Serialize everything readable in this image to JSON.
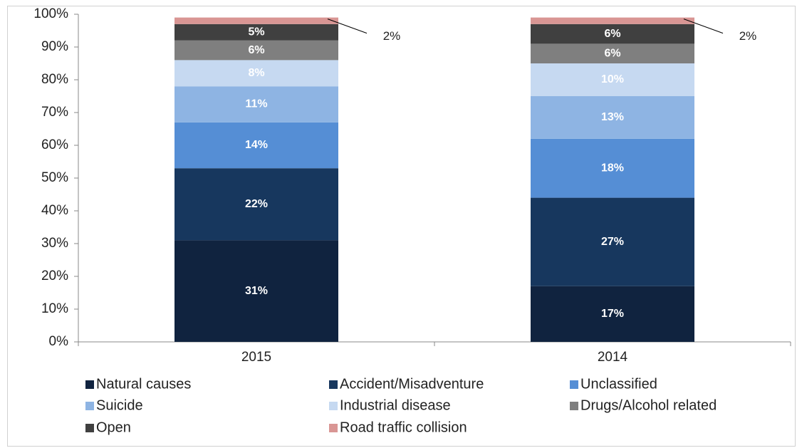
{
  "chart_data": {
    "type": "stacked_bar",
    "categories": [
      "2015",
      "2014"
    ],
    "series": [
      {
        "name": "Natural causes",
        "color": "#10233f",
        "values": [
          31,
          17
        ],
        "value_labels": [
          "31%",
          "17%"
        ]
      },
      {
        "name": "Accident/Misadventure",
        "color": "#17375e",
        "values": [
          22,
          27
        ],
        "value_labels": [
          "22%",
          "27%"
        ]
      },
      {
        "name": "Unclassified",
        "color": "#558ed5",
        "values": [
          14,
          18
        ],
        "value_labels": [
          "14%",
          "18%"
        ]
      },
      {
        "name": "Suicide",
        "color": "#8eb4e3",
        "values": [
          11,
          13
        ],
        "value_labels": [
          "11%",
          "13%"
        ]
      },
      {
        "name": "Industrial disease",
        "color": "#c6d9f1",
        "values": [
          8,
          10
        ],
        "value_labels": [
          "8%",
          "10%"
        ]
      },
      {
        "name": "Drugs/Alcohol related",
        "color": "#7f7f7f",
        "values": [
          6,
          6
        ],
        "value_labels": [
          "6%",
          "6%"
        ]
      },
      {
        "name": "Open",
        "color": "#404040",
        "values": [
          5,
          6
        ],
        "value_labels": [
          "5%",
          "6%"
        ]
      },
      {
        "name": "Road traffic collision",
        "color": "#d99694",
        "values": [
          2,
          2
        ],
        "value_labels": [
          "2%",
          "2%"
        ]
      }
    ],
    "ylim": [
      0,
      100
    ],
    "yticks": [
      {
        "value": 0,
        "label": "0%"
      },
      {
        "value": 10,
        "label": "10%"
      },
      {
        "value": 20,
        "label": "20%"
      },
      {
        "value": 30,
        "label": "30%"
      },
      {
        "value": 40,
        "label": "40%"
      },
      {
        "value": 50,
        "label": "50%"
      },
      {
        "value": 60,
        "label": "60%"
      },
      {
        "value": 70,
        "label": "70%"
      },
      {
        "value": 80,
        "label": "80%"
      },
      {
        "value": 90,
        "label": "90%"
      },
      {
        "value": 100,
        "label": "100%"
      }
    ],
    "grid": false,
    "legend": "bottom"
  }
}
